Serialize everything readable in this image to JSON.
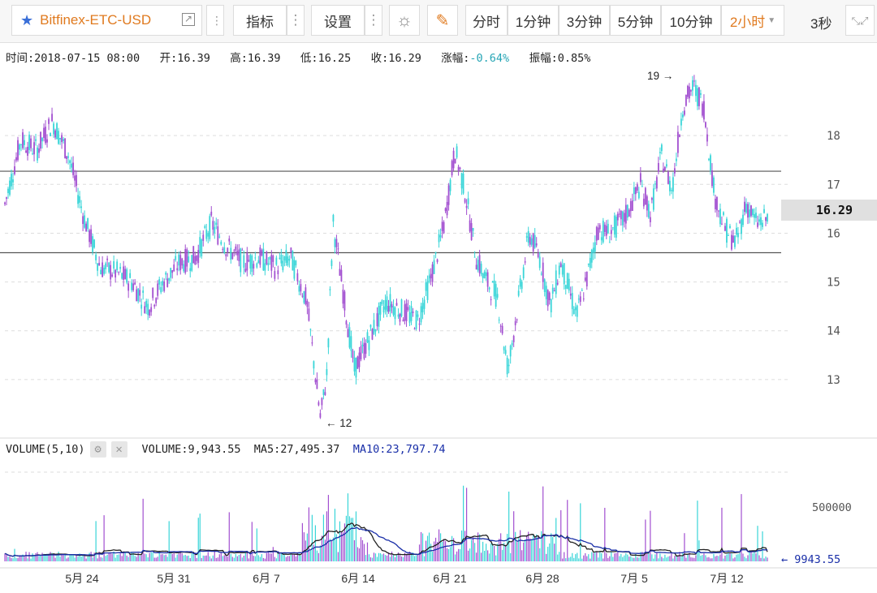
{
  "toolbar": {
    "symbol": "Bitfinex-ETC-USD",
    "indicator_label": "指标",
    "settings_label": "设置",
    "intervals": [
      "分时",
      "1分钟",
      "3分钟",
      "5分钟",
      "10分钟"
    ],
    "selected_interval": "2小时",
    "refresh": "3秒",
    "accent_color": "#e07a1f"
  },
  "info": {
    "time_label": "时间:",
    "time": "2018-07-15 08:00",
    "open_label": "开:",
    "open": "16.39",
    "high_label": "高:",
    "high": "16.39",
    "low_label": "低:",
    "low": "16.25",
    "close_label": "收:",
    "close": "16.29",
    "change_label": "涨幅:",
    "change": "-0.64%",
    "amplitude_label": "振幅:",
    "amplitude": "0.85%"
  },
  "volume": {
    "title": "VOLUME(5,10)",
    "volume_label": "VOLUME:",
    "volume": "9,943.55",
    "ma5_label": "MA5:",
    "ma5": "27,495.37",
    "ma10_label": "MA10:",
    "ma10": "23,797.74",
    "scale_label": "500000",
    "last_label": "← 9943.55"
  },
  "price_tag": "16.29",
  "annotations": {
    "max_label": "19 →",
    "min_label": "← 12"
  },
  "chart_data": {
    "type": "line",
    "price_axis": {
      "ticks": [
        18,
        17,
        16,
        15,
        14,
        13
      ],
      "range": [
        12.1,
        19.2
      ]
    },
    "x_ticks": [
      "5月 24",
      "5月 31",
      "6月 7",
      "6月 14",
      "6月 21",
      "6月 28",
      "7月 5",
      "7月 12"
    ],
    "horizontal_lines": [
      17.27,
      15.6
    ],
    "price_series": [
      [
        0,
        16.6
      ],
      [
        1.5,
        17.9
      ],
      [
        3,
        17.7
      ],
      [
        4.5,
        18.3
      ],
      [
        6,
        17.6
      ],
      [
        7.5,
        16.3
      ],
      [
        9,
        15.3
      ],
      [
        10.5,
        15.2
      ],
      [
        12,
        15.0
      ],
      [
        13.5,
        14.5
      ],
      [
        15,
        15.0
      ],
      [
        16.5,
        15.4
      ],
      [
        18,
        15.5
      ],
      [
        19.5,
        16.2
      ],
      [
        21,
        15.7
      ],
      [
        22.5,
        15.4
      ],
      [
        24,
        15.5
      ],
      [
        25.5,
        15.3
      ],
      [
        27,
        15.5
      ],
      [
        28.5,
        14.6
      ],
      [
        29.8,
        12.2
      ],
      [
        30.4,
        13.1
      ],
      [
        31,
        16.2
      ],
      [
        32,
        14.7
      ],
      [
        33,
        13.2
      ],
      [
        34.5,
        13.9
      ],
      [
        36,
        14.6
      ],
      [
        37.5,
        14.4
      ],
      [
        39,
        14.2
      ],
      [
        40.5,
        15.3
      ],
      [
        41.5,
        16.2
      ],
      [
        42.5,
        17.7
      ],
      [
        43.5,
        16.8
      ],
      [
        44.5,
        15.5
      ],
      [
        45.5,
        15.0
      ],
      [
        46.5,
        14.7
      ],
      [
        47.5,
        13.2
      ],
      [
        48.5,
        14.6
      ],
      [
        49.5,
        16.0
      ],
      [
        50.5,
        15.5
      ],
      [
        51.5,
        14.5
      ],
      [
        52.5,
        15.4
      ],
      [
        54,
        14.3
      ],
      [
        55,
        15.1
      ],
      [
        56,
        16.1
      ],
      [
        57,
        16.0
      ],
      [
        58.5,
        16.3
      ],
      [
        60,
        17.0
      ],
      [
        61,
        16.4
      ],
      [
        62,
        17.6
      ],
      [
        63,
        16.9
      ],
      [
        64,
        18.6
      ],
      [
        65,
        19.0
      ],
      [
        66,
        18.6
      ],
      [
        67,
        16.8
      ],
      [
        68,
        16.1
      ],
      [
        69,
        15.8
      ],
      [
        70,
        16.6
      ],
      [
        71,
        16.2
      ],
      [
        72,
        16.3
      ]
    ],
    "volume_series_max": 600000
  }
}
